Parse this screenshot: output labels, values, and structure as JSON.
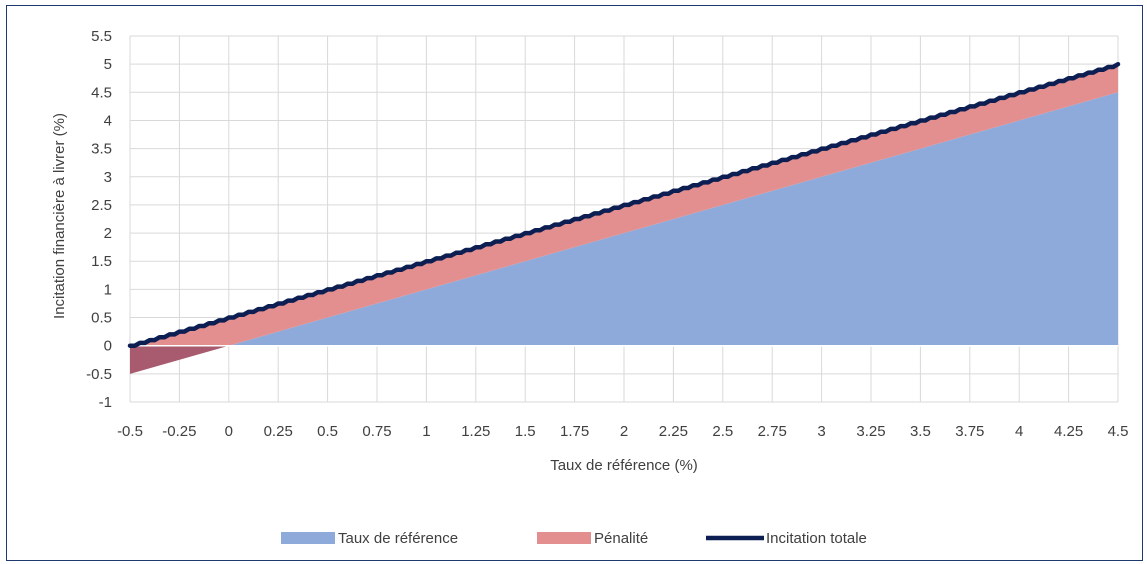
{
  "chart_data": {
    "type": "area",
    "title": "",
    "xlabel": "Taux de référence (%)",
    "ylabel": "Incitation financière à livrer (%)",
    "xlim": [
      -0.5,
      4.5
    ],
    "ylim": [
      -1,
      5.5
    ],
    "x_ticks": [
      "-0.5",
      "-0.25",
      "0",
      "0.25",
      "0.5",
      "0.75",
      "1",
      "1.25",
      "1.5",
      "1.75",
      "2",
      "2.25",
      "2.5",
      "2.75",
      "3",
      "3.25",
      "3.5",
      "3.75",
      "4",
      "4.25",
      "4.5"
    ],
    "y_ticks": [
      "5.5",
      "5",
      "4.5",
      "4",
      "3.5",
      "3",
      "2.5",
      "2",
      "1.5",
      "1",
      "0.5",
      "0",
      "-0.5",
      "-1"
    ],
    "grid": true,
    "legend_position": "bottom",
    "x": [
      -0.5,
      4.5
    ],
    "series": [
      {
        "name": "Taux de référence",
        "kind": "area",
        "color": "#8eaadb",
        "values": [
          -0.5,
          4.5
        ]
      },
      {
        "name": "Pénalité",
        "kind": "stacked-area",
        "color": "#e48f8f",
        "values": [
          0.5,
          0.5
        ]
      },
      {
        "name": "Incitation totale",
        "kind": "line",
        "color": "#0d1f52",
        "values": [
          0,
          5
        ]
      }
    ],
    "overlap_color": "#a85a6e"
  }
}
